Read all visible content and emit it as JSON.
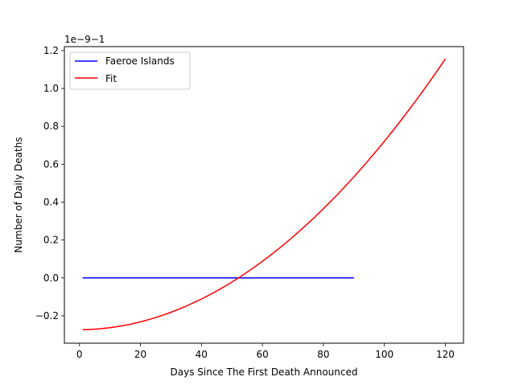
{
  "chart_data": {
    "type": "line",
    "title": "",
    "xlabel": "Days Since The First Death Announced",
    "ylabel": "Number of Daily Deaths",
    "offset_text": "1e−9−1",
    "xlim": [
      -4.95,
      125.95
    ],
    "ylim": [
      -0.3445,
      1.2208
    ],
    "x_ticks": [
      0,
      20,
      40,
      60,
      80,
      100,
      120
    ],
    "x_tick_labels": [
      "0",
      "20",
      "40",
      "60",
      "80",
      "100",
      "120"
    ],
    "y_ticks": [
      -0.2,
      0.0,
      0.2,
      0.4,
      0.6,
      0.8,
      1.0,
      1.2
    ],
    "y_tick_labels": [
      "−0.2",
      "0.0",
      "0.2",
      "0.4",
      "0.6",
      "0.8",
      "1.0",
      "1.2"
    ],
    "grid": false,
    "legend_position": "top-left",
    "series": [
      {
        "name": "Faeroe Islands",
        "color": "#0000ff",
        "x": [
          1,
          90
        ],
        "y": [
          0.0,
          0.0
        ]
      },
      {
        "name": "Fit",
        "color": "#ff0000",
        "x": [
          1,
          10,
          20,
          30,
          40,
          50,
          60,
          70,
          80,
          90,
          100,
          110,
          120
        ],
        "y": [
          -0.272,
          -0.262,
          -0.232,
          -0.182,
          -0.113,
          -0.023,
          0.087,
          0.216,
          0.366,
          0.535,
          0.724,
          0.933,
          1.15
        ]
      }
    ]
  }
}
